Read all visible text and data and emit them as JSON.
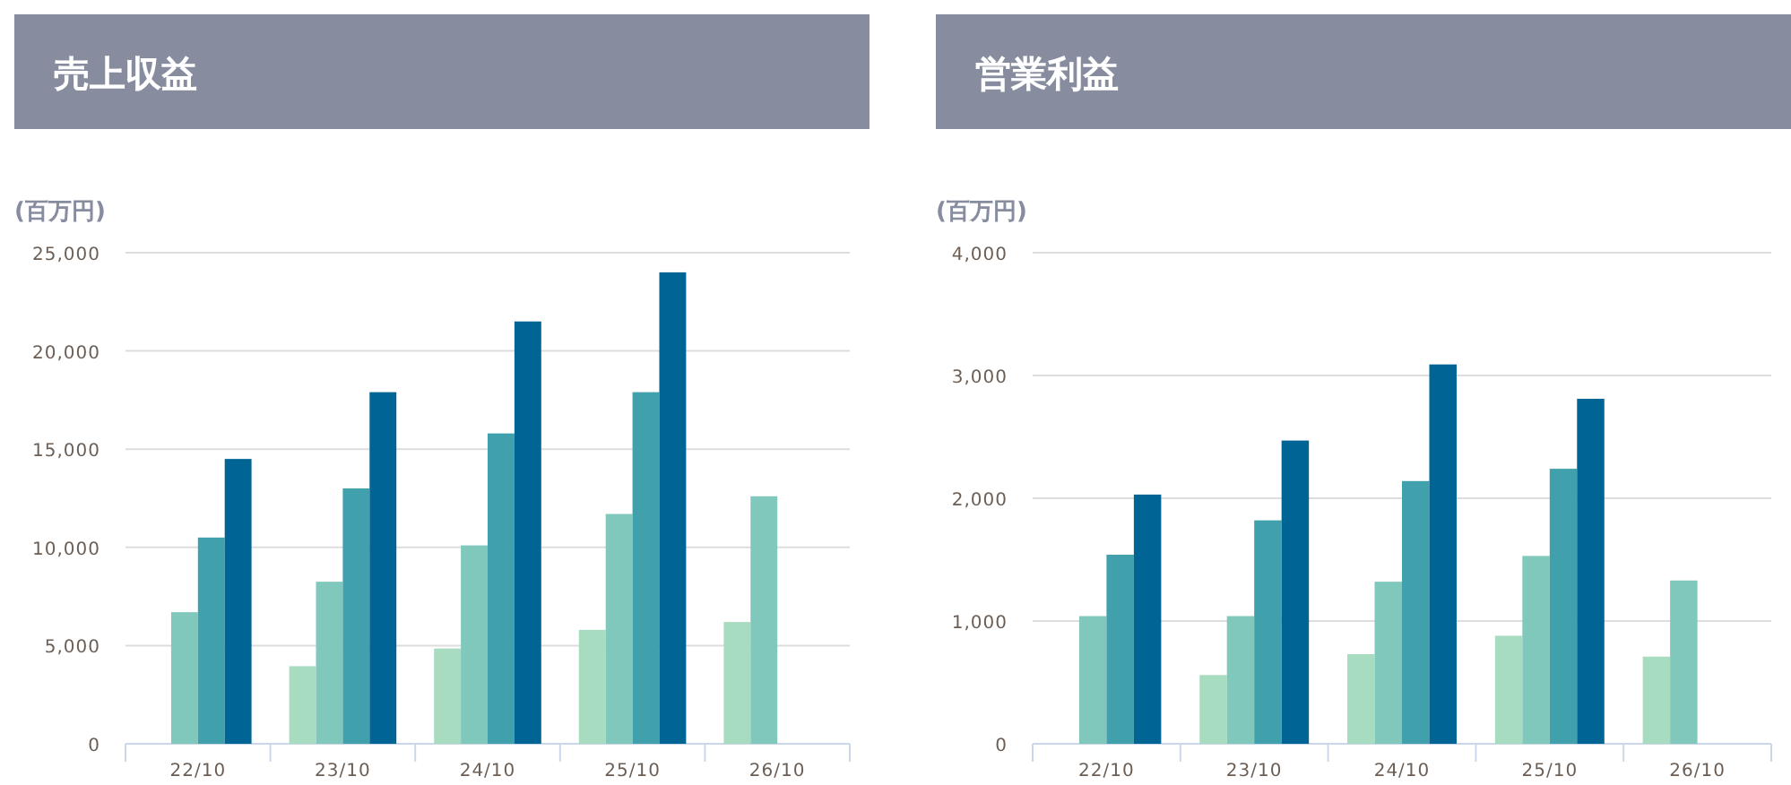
{
  "chart_data": [
    {
      "type": "bar",
      "title": "売上収益",
      "ylabel": "(百万円)",
      "categories": [
        "22/10",
        "23/10",
        "24/10",
        "25/10",
        "26/10"
      ],
      "series": [
        {
          "color": "#a8dcc0",
          "values": [
            null,
            3950,
            4850,
            5800,
            6200
          ]
        },
        {
          "color": "#80c8bc",
          "values": [
            6700,
            8250,
            10100,
            11700,
            12600
          ]
        },
        {
          "color": "#40a0ac",
          "values": [
            10500,
            13000,
            15800,
            17900,
            null
          ]
        },
        {
          "color": "#006494",
          "values": [
            14500,
            17900,
            21500,
            24000,
            null
          ]
        }
      ],
      "ylim": [
        0,
        25000
      ],
      "yticks": [
        {
          "value": 0,
          "label": "0"
        },
        {
          "value": 5000,
          "label": "5,000"
        },
        {
          "value": 10000,
          "label": "10,000"
        },
        {
          "value": 15000,
          "label": "15,000"
        },
        {
          "value": 20000,
          "label": "20,000"
        },
        {
          "value": 25000,
          "label": "25,000"
        }
      ],
      "grid": "y"
    },
    {
      "type": "bar",
      "title": "営業利益",
      "ylabel": "(百万円)",
      "categories": [
        "22/10",
        "23/10",
        "24/10",
        "25/10",
        "26/10"
      ],
      "series": [
        {
          "color": "#a8dcc0",
          "values": [
            null,
            560,
            730,
            880,
            710
          ]
        },
        {
          "color": "#80c8bc",
          "values": [
            1040,
            1040,
            1320,
            1530,
            1330
          ]
        },
        {
          "color": "#40a0ac",
          "values": [
            1540,
            1820,
            2140,
            2240,
            null
          ]
        },
        {
          "color": "#006494",
          "values": [
            2030,
            2470,
            3090,
            2810,
            null
          ]
        }
      ],
      "ylim": [
        0,
        4000
      ],
      "yticks": [
        {
          "value": 0,
          "label": "0"
        },
        {
          "value": 1000,
          "label": "1,000"
        },
        {
          "value": 2000,
          "label": "2,000"
        },
        {
          "value": 3000,
          "label": "3,000"
        },
        {
          "value": 4000,
          "label": "4,000"
        }
      ],
      "grid": "y"
    }
  ]
}
